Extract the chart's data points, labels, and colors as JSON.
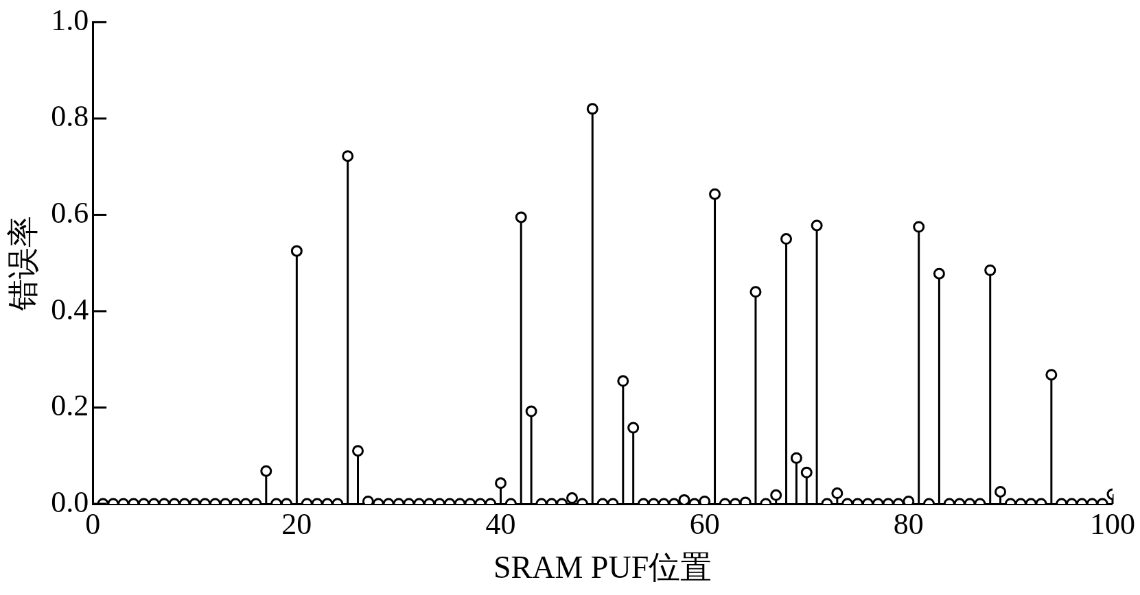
{
  "chart_data": {
    "type": "lollipop",
    "xlabel": "SRAM PUF位置",
    "ylabel": "错误率",
    "x": [
      1,
      2,
      3,
      4,
      5,
      6,
      7,
      8,
      9,
      10,
      11,
      12,
      13,
      14,
      15,
      16,
      17,
      18,
      19,
      20,
      21,
      22,
      23,
      24,
      25,
      26,
      27,
      28,
      29,
      30,
      31,
      32,
      33,
      34,
      35,
      36,
      37,
      38,
      39,
      40,
      41,
      42,
      43,
      44,
      45,
      46,
      47,
      48,
      49,
      50,
      51,
      52,
      53,
      54,
      55,
      56,
      57,
      58,
      59,
      60,
      61,
      62,
      63,
      64,
      65,
      66,
      67,
      68,
      69,
      70,
      71,
      72,
      73,
      74,
      75,
      76,
      77,
      78,
      79,
      80,
      81,
      82,
      83,
      84,
      85,
      86,
      87,
      88,
      89,
      90,
      91,
      92,
      93,
      94,
      95,
      96,
      97,
      98,
      99,
      100
    ],
    "series": [
      {
        "color": "#000000",
        "values": [
          0,
          0,
          0,
          0,
          0,
          0,
          0,
          0,
          0,
          0,
          0,
          0,
          0,
          0,
          0,
          0,
          0.068,
          0,
          0,
          0.525,
          0,
          0,
          0,
          0,
          0.722,
          0.11,
          0.005,
          0,
          0,
          0,
          0,
          0,
          0,
          0,
          0,
          0,
          0,
          0,
          0,
          0.043,
          0,
          0.595,
          0.192,
          0,
          0,
          0,
          0.012,
          0,
          0.82,
          0,
          0,
          0.255,
          0.158,
          0,
          0,
          0,
          0,
          0.008,
          0,
          0.005,
          0.643,
          0,
          0,
          0.003,
          0.44,
          0,
          0.018,
          0.55,
          0.095,
          0.065,
          0.578,
          0,
          0.022,
          0,
          0,
          0,
          0,
          0,
          0,
          0.005,
          0.575,
          0,
          0.478,
          0,
          0,
          0,
          0,
          0.485,
          0.025,
          0,
          0,
          0,
          0,
          0.268,
          0,
          0,
          0,
          0,
          0,
          0.02
        ]
      }
    ],
    "xlim": [
      0,
      100
    ],
    "xticks": [
      0,
      20,
      40,
      60,
      80,
      100
    ],
    "ylim": [
      0,
      1
    ],
    "yticks": [
      {
        "value": 0,
        "label": "0.0"
      },
      {
        "value": 0.2,
        "label": "0.2"
      },
      {
        "value": 0.4,
        "label": "0.4"
      },
      {
        "value": 0.6,
        "label": "0.6"
      },
      {
        "value": 0.8,
        "label": "0.8"
      },
      {
        "value": 1,
        "label": "1.0"
      }
    ],
    "marker": "circle",
    "grid": false
  }
}
